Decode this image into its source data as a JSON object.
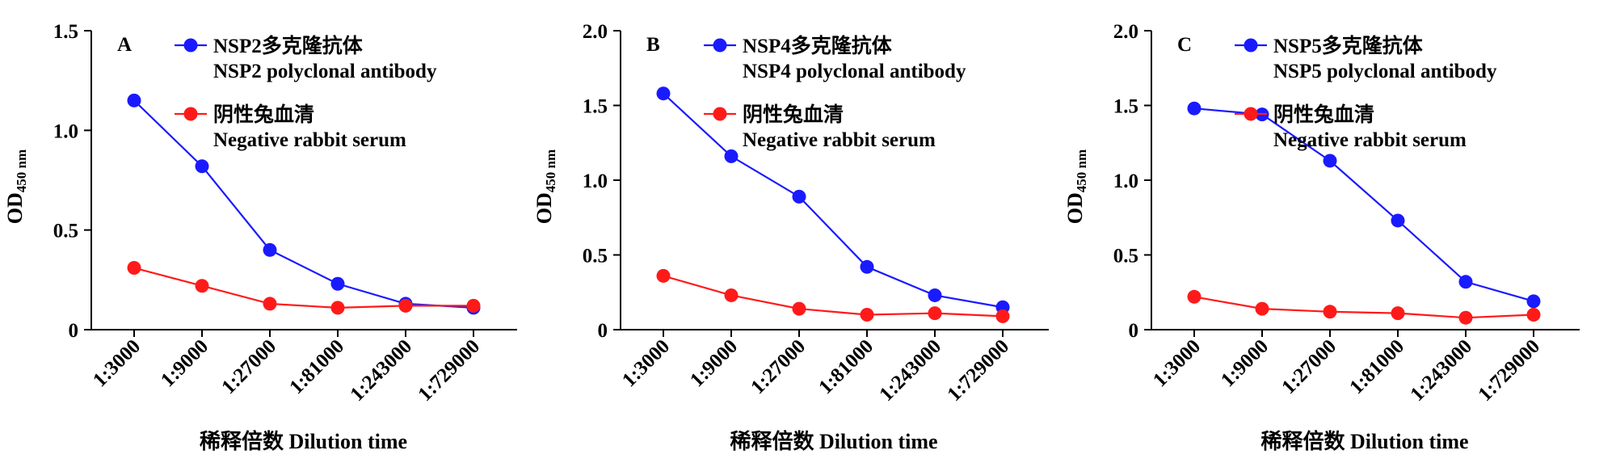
{
  "chart_data": [
    {
      "type": "line",
      "panel_label": "A",
      "categories": [
        "1:3000",
        "1:9000",
        "1:27000",
        "1:81000",
        "1:243000",
        "1:729000"
      ],
      "series": [
        {
          "name": "NSP2多克隆抗体",
          "name_en": "NSP2 polyclonal antibody",
          "color": "#1a1aff",
          "values": [
            1.15,
            0.82,
            0.4,
            0.23,
            0.13,
            0.11
          ]
        },
        {
          "name": "阴性兔血清",
          "name_en": "Negative rabbit serum",
          "color": "#ff1a1a",
          "values": [
            0.31,
            0.22,
            0.13,
            0.11,
            0.12,
            0.12
          ]
        }
      ],
      "ylim": [
        0,
        1.5
      ],
      "yticks": [
        "0",
        "0.5",
        "1.0",
        "1.5"
      ],
      "ylabel_main": "OD",
      "ylabel_sub": "450 nm",
      "xlabel": "稀释倍数 Dilution time",
      "legend_position": "top-right",
      "grid": false
    },
    {
      "type": "line",
      "panel_label": "B",
      "categories": [
        "1:3000",
        "1:9000",
        "1:27000",
        "1:81000",
        "1:243000",
        "1:729000"
      ],
      "series": [
        {
          "name": "NSP4多克隆抗体",
          "name_en": "NSP4 polyclonal antibody",
          "color": "#1a1aff",
          "values": [
            1.58,
            1.16,
            0.89,
            0.42,
            0.23,
            0.15
          ]
        },
        {
          "name": "阴性兔血清",
          "name_en": "Negative rabbit serum",
          "color": "#ff1a1a",
          "values": [
            0.36,
            0.23,
            0.14,
            0.1,
            0.11,
            0.09
          ]
        }
      ],
      "ylim": [
        0,
        2.0
      ],
      "yticks": [
        "0",
        "0.5",
        "1.0",
        "1.5",
        "2.0"
      ],
      "ylabel_main": "OD",
      "ylabel_sub": "450 nm",
      "xlabel": "稀释倍数 Dilution time",
      "legend_position": "top-right",
      "grid": false
    },
    {
      "type": "line",
      "panel_label": "C",
      "categories": [
        "1:3000",
        "1:9000",
        "1:27000",
        "1:81000",
        "1:243000",
        "1:729000"
      ],
      "series": [
        {
          "name": "NSP5多克隆抗体",
          "name_en": "NSP5 polyclonal antibody",
          "color": "#1a1aff",
          "values": [
            1.48,
            1.44,
            1.13,
            0.73,
            0.32,
            0.19
          ]
        },
        {
          "name": "阴性兔血清",
          "name_en": "Negative rabbit serum",
          "color": "#ff1a1a",
          "values": [
            0.22,
            0.14,
            0.12,
            0.11,
            0.08,
            0.1
          ]
        }
      ],
      "ylim": [
        0,
        2.0
      ],
      "yticks": [
        "0",
        "0.5",
        "1.0",
        "1.5",
        "2.0"
      ],
      "ylabel_main": "OD",
      "ylabel_sub": "450 nm",
      "xlabel": "稀释倍数 Dilution time",
      "legend_position": "top-right",
      "grid": false
    }
  ]
}
